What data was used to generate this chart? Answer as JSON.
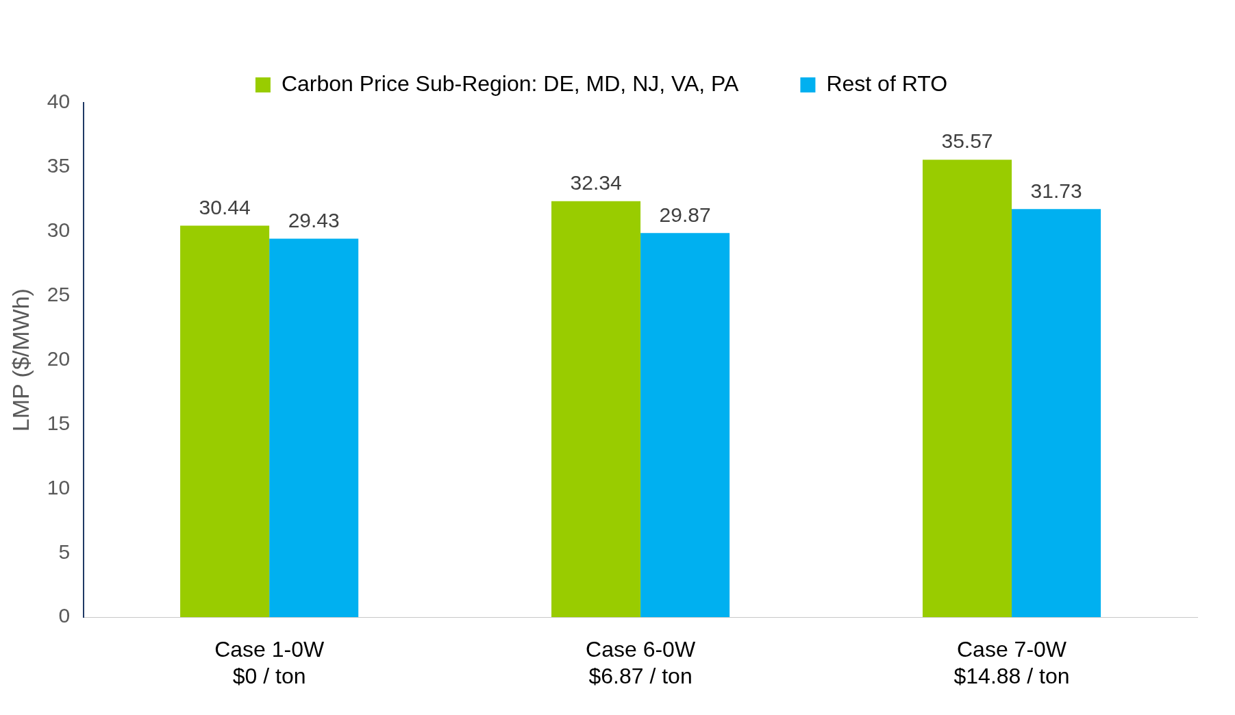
{
  "chart_data": {
    "type": "bar",
    "ylabel": "LMP ($/MWh)",
    "categories": [
      "Case 1-0W\n$0 / ton",
      "Case 6-0W\n$6.87 / ton",
      "Case 7-0W\n$14.88 / ton"
    ],
    "series": [
      {
        "name": "Carbon Price Sub-Region: DE, MD, NJ, VA, PA",
        "color": "#99cc00",
        "values": [
          30.44,
          32.34,
          35.57
        ]
      },
      {
        "name": "Rest of RTO",
        "color": "#00b0f0",
        "values": [
          29.43,
          29.87,
          31.73
        ]
      }
    ],
    "ylim": [
      0,
      40
    ],
    "yticks": [
      0,
      5,
      10,
      15,
      20,
      25,
      30,
      35,
      40
    ],
    "grid": false,
    "legend": "top",
    "data_labels": true
  }
}
